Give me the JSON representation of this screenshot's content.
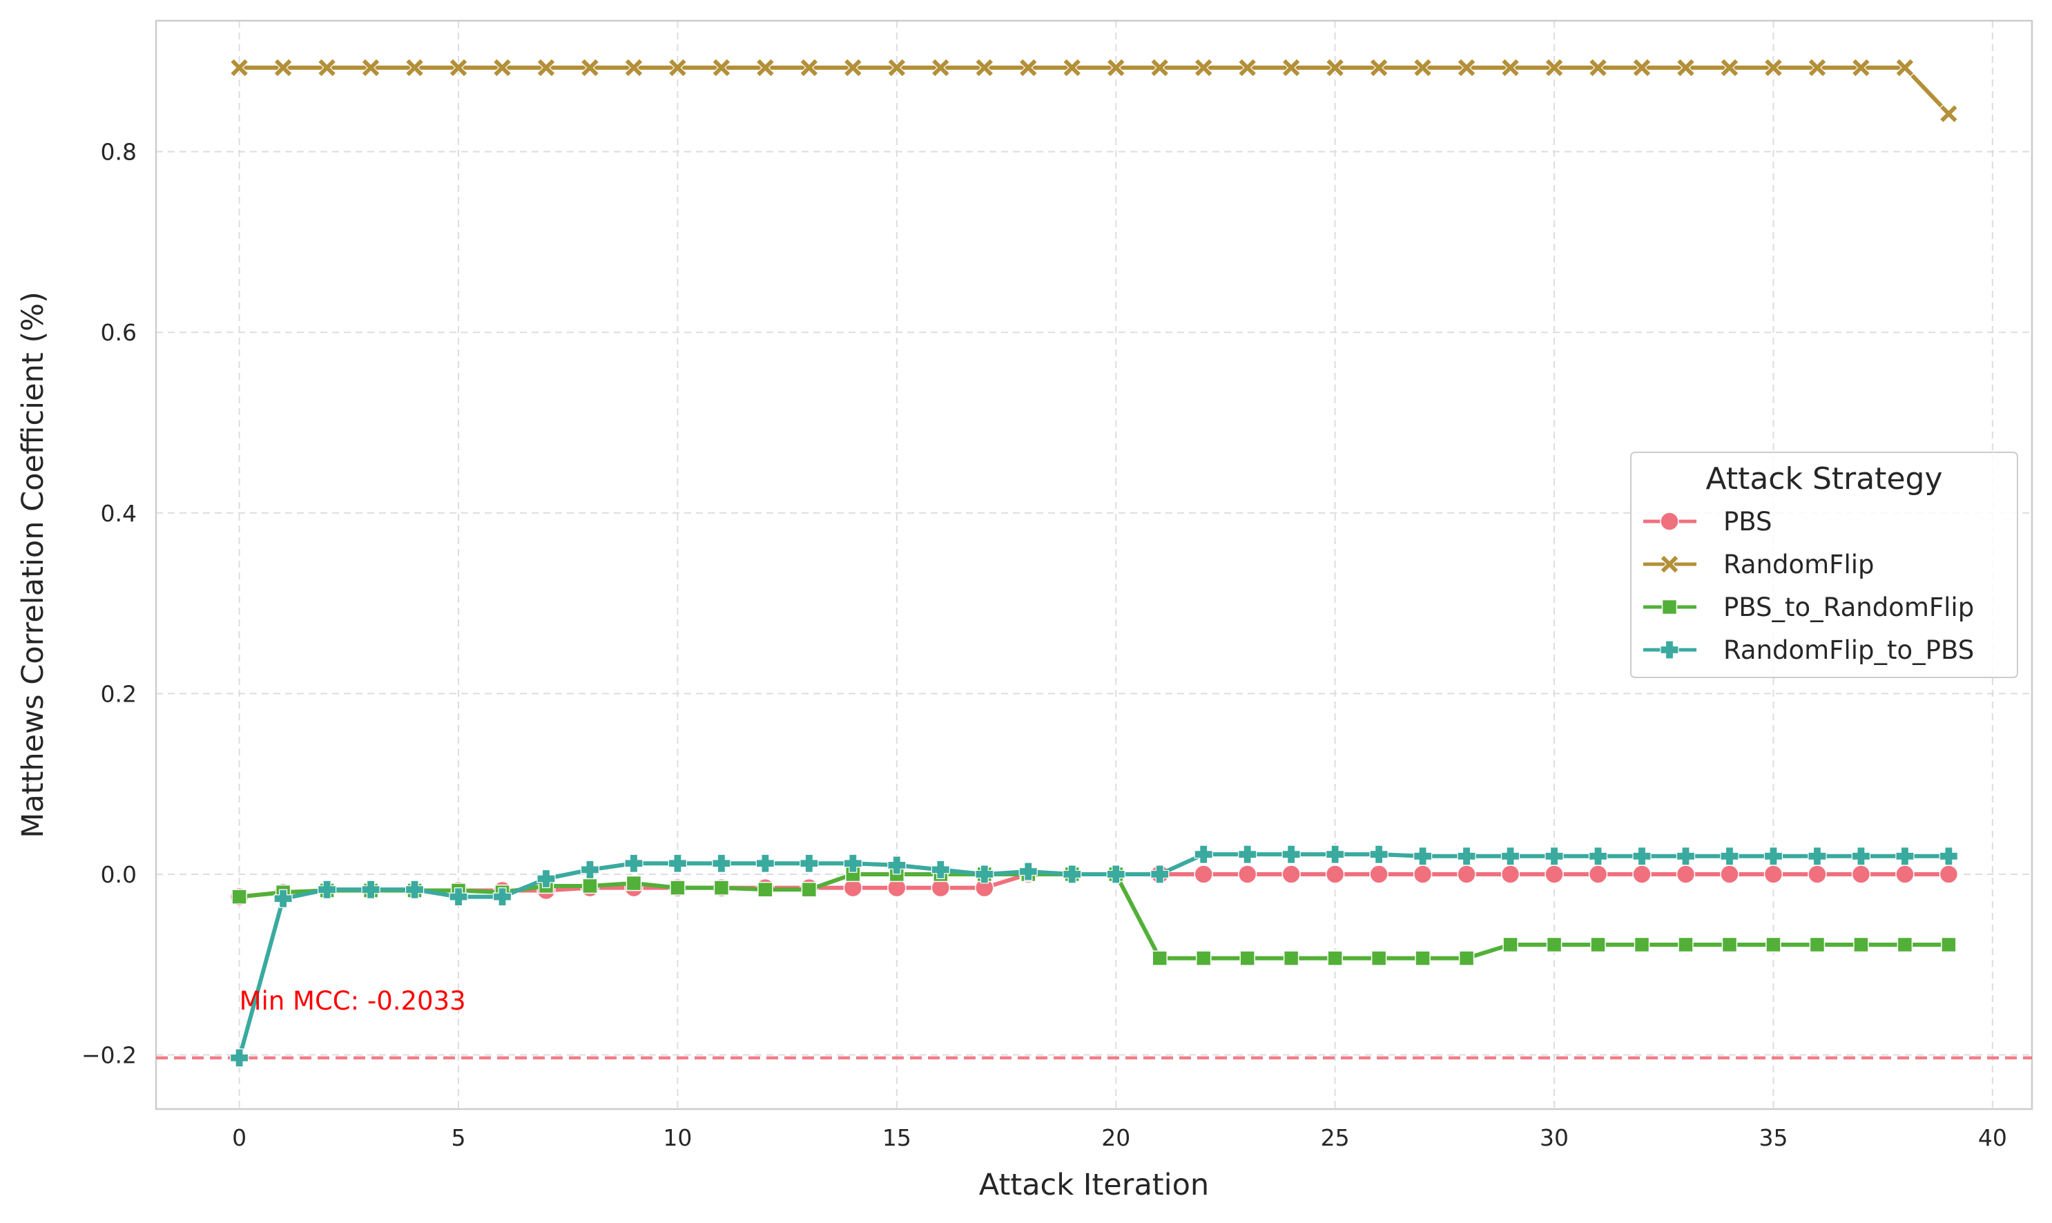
{
  "chart_data": {
    "type": "line",
    "xlabel": "Attack Iteration",
    "ylabel": "Matthews Correlation Coefficient (%)",
    "xlim": [
      -1.9,
      40.9
    ],
    "ylim": [
      -0.26,
      0.945
    ],
    "xticks": [
      0,
      5,
      10,
      15,
      20,
      25,
      30,
      35,
      40
    ],
    "yticks": [
      -0.2,
      0.0,
      0.2,
      0.4,
      0.6,
      0.8
    ],
    "ytick_labels": [
      "−0.2",
      "0.0",
      "0.2",
      "0.4",
      "0.6",
      "0.8"
    ],
    "grid": true,
    "legend_title": "Attack Strategy",
    "legend_position": "center-right",
    "x": [
      0,
      1,
      2,
      3,
      4,
      5,
      6,
      7,
      8,
      9,
      10,
      11,
      12,
      13,
      14,
      15,
      16,
      17,
      18,
      19,
      20,
      21,
      22,
      23,
      24,
      25,
      26,
      27,
      28,
      29,
      30,
      31,
      32,
      33,
      34,
      35,
      36,
      37,
      38,
      39
    ],
    "series": [
      {
        "name": "PBS",
        "color": "#f0707e",
        "marker": "circle",
        "values": [
          -0.025,
          -0.02,
          -0.018,
          -0.018,
          -0.018,
          -0.018,
          -0.018,
          -0.018,
          -0.015,
          -0.015,
          -0.015,
          -0.015,
          -0.015,
          -0.015,
          -0.015,
          -0.015,
          -0.015,
          -0.015,
          0.0,
          0.0,
          0.0,
          0.0,
          0.0,
          0.0,
          0.0,
          0.0,
          0.0,
          0.0,
          0.0,
          0.0,
          0.0,
          0.0,
          0.0,
          0.0,
          0.0,
          0.0,
          0.0,
          0.0,
          0.0,
          0.0
        ]
      },
      {
        "name": "RandomFlip",
        "color": "#b38f38",
        "marker": "x",
        "values": [
          0.893,
          0.893,
          0.893,
          0.893,
          0.893,
          0.893,
          0.893,
          0.893,
          0.893,
          0.893,
          0.893,
          0.893,
          0.893,
          0.893,
          0.893,
          0.893,
          0.893,
          0.893,
          0.893,
          0.893,
          0.893,
          0.893,
          0.893,
          0.893,
          0.893,
          0.893,
          0.893,
          0.893,
          0.893,
          0.893,
          0.893,
          0.893,
          0.893,
          0.893,
          0.893,
          0.893,
          0.893,
          0.893,
          0.893,
          0.842
        ]
      },
      {
        "name": "PBS_to_RandomFlip",
        "color": "#52b038",
        "marker": "square",
        "values": [
          -0.025,
          -0.02,
          -0.018,
          -0.018,
          -0.018,
          -0.018,
          -0.02,
          -0.013,
          -0.013,
          -0.01,
          -0.015,
          -0.015,
          -0.017,
          -0.017,
          0.0,
          0.0,
          0.0,
          0.0,
          0.0,
          0.0,
          0.0,
          -0.093,
          -0.093,
          -0.093,
          -0.093,
          -0.093,
          -0.093,
          -0.093,
          -0.093,
          -0.078,
          -0.078,
          -0.078,
          -0.078,
          -0.078,
          -0.078,
          -0.078,
          -0.078,
          -0.078,
          -0.078,
          -0.078
        ]
      },
      {
        "name": "RandomFlip_to_PBS",
        "color": "#3aaa9f",
        "marker": "plus",
        "values": [
          -0.2033,
          -0.027,
          -0.017,
          -0.017,
          -0.017,
          -0.025,
          -0.025,
          -0.005,
          0.005,
          0.012,
          0.012,
          0.012,
          0.012,
          0.012,
          0.012,
          0.01,
          0.005,
          0.0,
          0.003,
          0.0,
          0.0,
          0.0,
          0.022,
          0.022,
          0.022,
          0.022,
          0.022,
          0.02,
          0.02,
          0.02,
          0.02,
          0.02,
          0.02,
          0.02,
          0.02,
          0.02,
          0.02,
          0.02,
          0.02,
          0.02
        ]
      }
    ],
    "reference_line": {
      "y": -0.2033,
      "color": "#f0707e",
      "style": "dashed"
    },
    "annotation": {
      "text": "Min MCC: -0.2033",
      "x": 0,
      "y": -0.15,
      "color": "#ff0000"
    }
  }
}
